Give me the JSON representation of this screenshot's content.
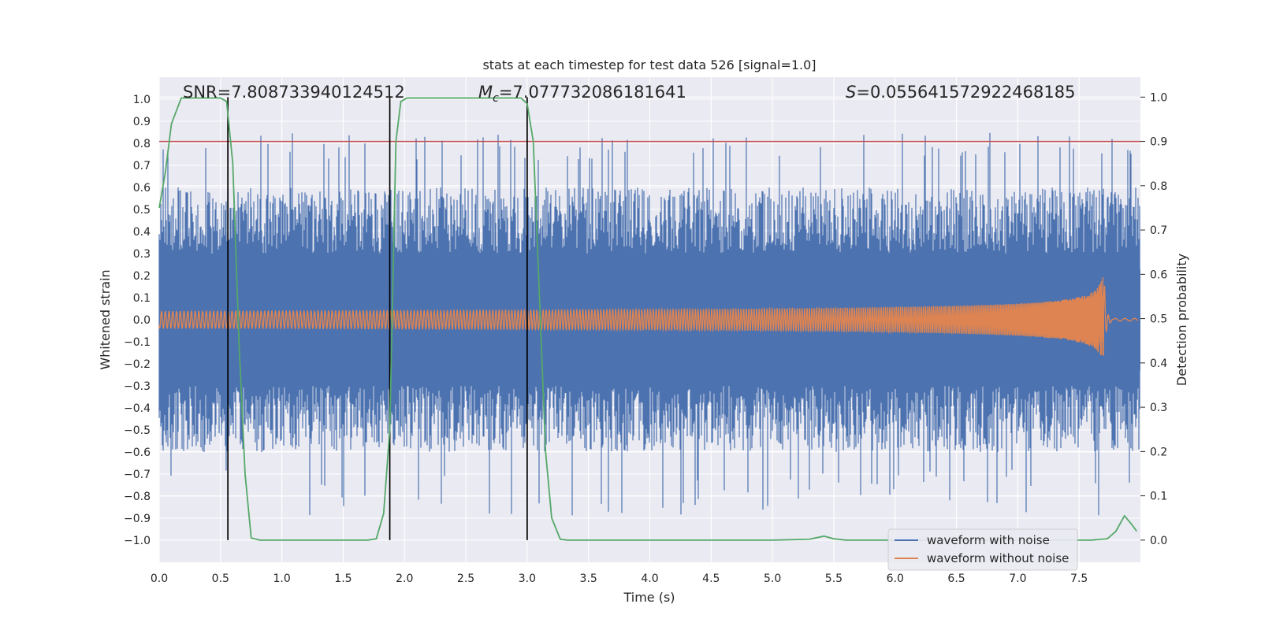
{
  "chart_data": {
    "type": "line",
    "title": "stats at each timestep for test data 526 [signal=1.0]",
    "xlabel": "Time (s)",
    "ylabel_left": "Whitened strain",
    "ylabel_right": "Detection probability",
    "xlim": [
      0.0,
      8.0
    ],
    "ylim_left": [
      -1.1,
      1.1
    ],
    "ylim_right": [
      -0.05,
      1.045
    ],
    "x_ticks": [
      "0.0",
      "0.5",
      "1.0",
      "1.5",
      "2.0",
      "2.5",
      "3.0",
      "3.5",
      "4.0",
      "4.5",
      "5.0",
      "5.5",
      "6.0",
      "6.5",
      "7.0",
      "7.5"
    ],
    "y_ticks_left": [
      "1.0",
      "0.9",
      "0.8",
      "0.7",
      "0.6",
      "0.5",
      "0.4",
      "0.3",
      "0.2",
      "0.1",
      "0.0",
      "−0.1",
      "−0.2",
      "−0.3",
      "−0.4",
      "−0.5",
      "−0.6",
      "−0.7",
      "−0.8",
      "−0.9",
      "−1.0"
    ],
    "y_ticks_right": [
      "1.0",
      "0.9",
      "0.8",
      "0.7",
      "0.6",
      "0.5",
      "0.4",
      "0.3",
      "0.2",
      "0.1",
      "0.0"
    ],
    "grid": true,
    "legend_position": "lower-right",
    "annotations": {
      "snr": "SNR=7.808733940124512",
      "mc_symbol": "M",
      "mc_sub": "c",
      "mc_value": "=7.077732086181641",
      "s_symbol": "S",
      "s_value": "=0.055641572922468185"
    },
    "series": [
      {
        "name": "waveform with noise",
        "color": "#4c72b0",
        "description_kind": "noise",
        "approx_amplitude": 0.6,
        "approx_peak_amplitude": 0.85
      },
      {
        "name": "waveform without noise",
        "color": "#dd8452",
        "description_kind": "chirp",
        "merger_time": 7.7,
        "start_amplitude": 0.01,
        "peak_amplitude": 0.23
      }
    ],
    "detection_probability": {
      "color": "#55a868",
      "points": [
        [
          0.0,
          0.75
        ],
        [
          0.05,
          0.83
        ],
        [
          0.1,
          0.94
        ],
        [
          0.18,
          0.998
        ],
        [
          0.25,
          0.998
        ],
        [
          0.5,
          0.998
        ],
        [
          0.55,
          0.99
        ],
        [
          0.6,
          0.85
        ],
        [
          0.65,
          0.45
        ],
        [
          0.7,
          0.15
        ],
        [
          0.75,
          0.005
        ],
        [
          0.82,
          0.0
        ],
        [
          1.0,
          0.0
        ],
        [
          1.5,
          0.0
        ],
        [
          1.7,
          0.0
        ],
        [
          1.77,
          0.003
        ],
        [
          1.83,
          0.06
        ],
        [
          1.88,
          0.25
        ],
        [
          1.93,
          0.9
        ],
        [
          1.97,
          0.99
        ],
        [
          2.02,
          0.998
        ],
        [
          2.5,
          0.998
        ],
        [
          2.95,
          0.998
        ],
        [
          3.0,
          0.985
        ],
        [
          3.05,
          0.9
        ],
        [
          3.1,
          0.55
        ],
        [
          3.15,
          0.2
        ],
        [
          3.2,
          0.05
        ],
        [
          3.27,
          0.002
        ],
        [
          3.33,
          0.0
        ],
        [
          4.0,
          0.0
        ],
        [
          5.0,
          0.0
        ],
        [
          5.3,
          0.002
        ],
        [
          5.42,
          0.009
        ],
        [
          5.5,
          0.003
        ],
        [
          5.6,
          0.0
        ],
        [
          6.0,
          0.0
        ],
        [
          7.0,
          0.0
        ],
        [
          7.6,
          0.0
        ],
        [
          7.73,
          0.003
        ],
        [
          7.8,
          0.02
        ],
        [
          7.87,
          0.055
        ],
        [
          7.93,
          0.035
        ],
        [
          7.97,
          0.02
        ]
      ]
    },
    "threshold": {
      "color": "#c44e52",
      "value": 0.9
    },
    "vertical_lines": {
      "color": "#000000",
      "x": [
        0.56,
        1.88,
        3.0
      ]
    },
    "legend": [
      {
        "label": "waveform with noise",
        "color": "#4c72b0"
      },
      {
        "label": "waveform without noise",
        "color": "#dd8452"
      }
    ]
  }
}
